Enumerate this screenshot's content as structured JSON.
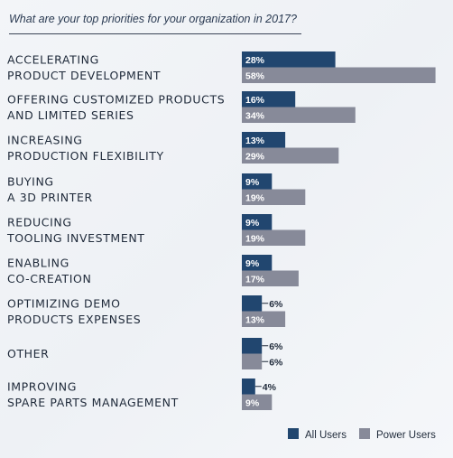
{
  "chart_data": {
    "type": "bar",
    "orientation": "horizontal",
    "title": "What are your top priorities for your organization in 2017?",
    "categories": [
      [
        "ACCELERATING",
        "PRODUCT DEVELOPMENT"
      ],
      [
        "OFFERING CUSTOMIZED PRODUCTS",
        "AND LIMITED SERIES"
      ],
      [
        "INCREASING",
        "PRODUCTION FLEXIBILITY"
      ],
      [
        "BUYING",
        "A 3D PRINTER"
      ],
      [
        "REDUCING",
        "TOOLING INVESTMENT"
      ],
      [
        "ENABLING",
        "CO-CREATION"
      ],
      [
        "OPTIMIZING DEMO",
        "PRODUCTS EXPENSES"
      ],
      [
        "OTHER"
      ],
      [
        "IMPROVING",
        "SPARE PARTS MANAGEMENT"
      ]
    ],
    "series": [
      {
        "name": "All Users",
        "color": "#21466f",
        "values": [
          28,
          16,
          13,
          9,
          9,
          9,
          6,
          6,
          4
        ]
      },
      {
        "name": "Power Users",
        "color": "#878a99",
        "values": [
          58,
          34,
          29,
          19,
          19,
          17,
          13,
          6,
          9
        ]
      }
    ],
    "value_suffix": "%",
    "xlim": [
      0,
      60
    ],
    "grid": false,
    "legend_position": "bottom-right"
  }
}
